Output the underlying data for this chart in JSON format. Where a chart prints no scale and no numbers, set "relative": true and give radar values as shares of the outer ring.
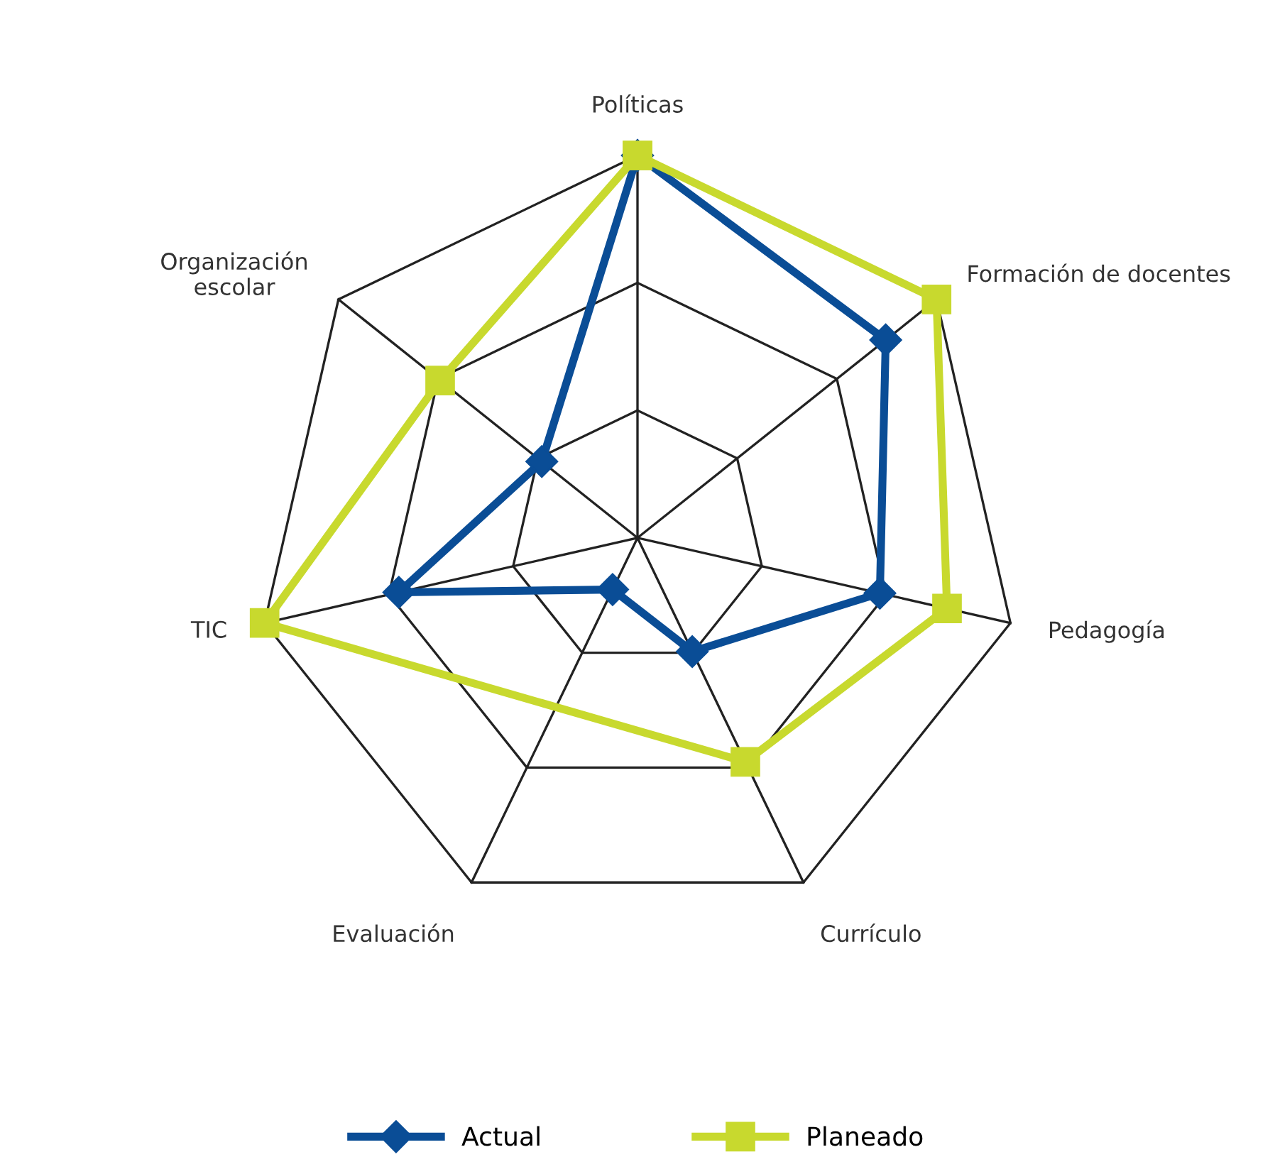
{
  "chart_data": {
    "type": "radar",
    "relative": true,
    "grid": true,
    "legend": "bottom",
    "categories": [
      "Políticas",
      "Formación de docentes",
      "Pedagogía",
      "Currículo",
      "Evaluación",
      "TIC",
      "Organización\nescolar"
    ],
    "series": [
      {
        "name": "Actual",
        "color": "#0a4d96",
        "marker": "diamond",
        "values": [
          1.0,
          0.83,
          0.65,
          0.33,
          0.15,
          0.64,
          0.32
        ]
      },
      {
        "name": "Planeado",
        "color": "#c8d92e",
        "marker": "square",
        "values": [
          1.0,
          1.0,
          0.83,
          0.65,
          null,
          1.0,
          0.66
        ]
      }
    ]
  }
}
